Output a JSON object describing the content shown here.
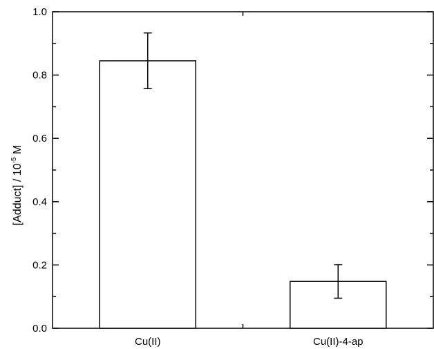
{
  "chart_data": {
    "type": "bar",
    "categories": [
      "Cu(II)",
      "Cu(II)-4-ap"
    ],
    "values": [
      0.845,
      0.148
    ],
    "errors": [
      0.088,
      0.053
    ],
    "ylabel": {
      "main": "[Adduct] / 10",
      "exponent": "-5",
      "unit": " M"
    },
    "ylim": [
      0.0,
      1.0
    ],
    "yticks_major": [
      0.0,
      0.2,
      0.4,
      0.6,
      0.8,
      1.0
    ],
    "ytick_labels": [
      "0.0",
      "0.2",
      "0.4",
      "0.6",
      "0.8",
      "1.0"
    ],
    "yticks_minor": [
      0.1,
      0.3,
      0.5,
      0.7,
      0.9
    ],
    "grid": false,
    "bar_fill": "#ffffff",
    "bar_stroke": "#000000"
  }
}
